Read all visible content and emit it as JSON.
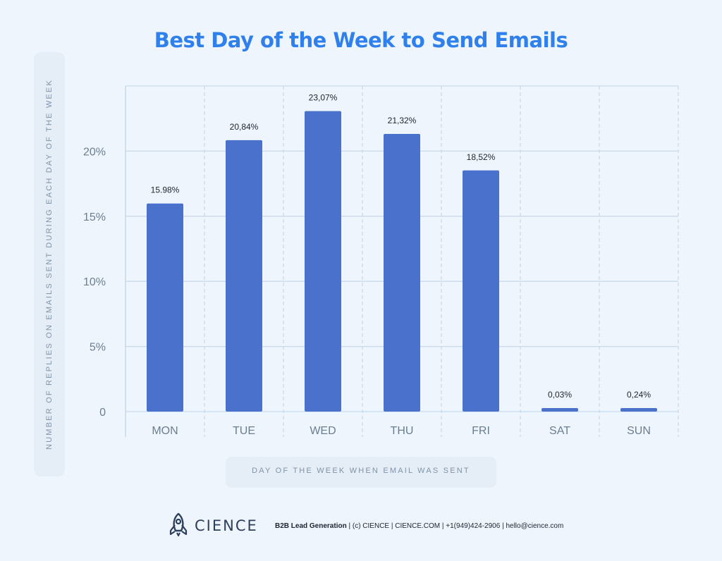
{
  "chart_data": {
    "type": "bar",
    "title": "Best Day of the Week to Send Emails",
    "xlabel": "DAY OF THE WEEK WHEN EMAIL WAS SENT",
    "ylabel": "NUMBER OF REPLIES ON EMAILS SENT DURING EACH DAY OF THE WEEK",
    "categories": [
      "MON",
      "TUE",
      "WED",
      "THU",
      "FRI",
      "SAT",
      "SUN"
    ],
    "values": [
      15.98,
      20.84,
      23.07,
      21.32,
      18.52,
      0.03,
      0.24
    ],
    "value_labels": [
      "15.98%",
      "20,84%",
      "23,07%",
      "21,32%",
      "18,52%",
      "0,03%",
      "0,24%"
    ],
    "ylim": [
      0,
      25
    ],
    "yticks": [
      0,
      5,
      10,
      15,
      20
    ],
    "ytick_labels": [
      "0",
      "5%",
      "10%",
      "15%",
      "20%"
    ],
    "grid": true,
    "colors": {
      "bar": "#4a72cc",
      "title": "#2f80ed",
      "grid": "#c9d9ea",
      "background": "#eef5fc"
    }
  },
  "footer": {
    "brand": "CIENCE",
    "logo_icon": "rocket-icon",
    "tagline": "B2B Lead Generation",
    "details": " | (c) CIENCE | CIENCE.COM | +1(949)424-2906 | hello@cience.com"
  }
}
